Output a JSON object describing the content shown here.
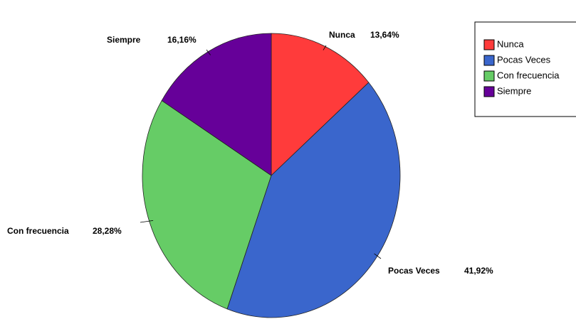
{
  "chart_data": {
    "type": "pie",
    "categories": [
      "Nunca",
      "Pocas Veces",
      "Con frecuencia",
      "Siempre"
    ],
    "values": [
      13.64,
      41.92,
      28.28,
      16.16
    ],
    "value_labels": [
      "13,64%",
      "41,92%",
      "28,28%",
      "16,16%"
    ],
    "colors": [
      "#ff3b3b",
      "#3a66cc",
      "#66cc66",
      "#660099"
    ],
    "legend": "top-right"
  }
}
